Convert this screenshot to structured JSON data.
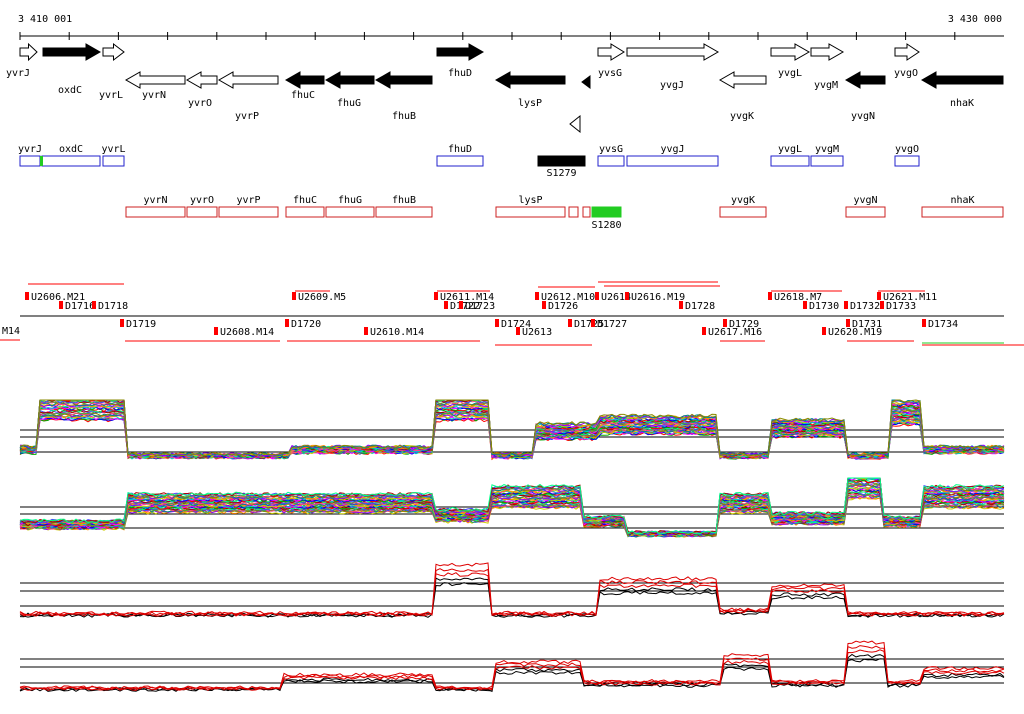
{
  "axis": {
    "start_label": "3 410 001",
    "end_label": "3 430 000",
    "start": 3410001,
    "end": 3430000
  },
  "colors": {
    "plus_outline": "#2222cc",
    "minus_outline": "#cc2222",
    "highlight": "#22cc22",
    "marker": "#ff0000",
    "trace_primary": "#000000",
    "trace_secondary": "#dd0000"
  },
  "genes": [
    {
      "name": "yvrJ",
      "strand": "+",
      "filled": false
    },
    {
      "name": "oxdC",
      "strand": "+",
      "filled": true
    },
    {
      "name": "yvrL",
      "strand": "+",
      "filled": false
    },
    {
      "name": "yvrN",
      "strand": "-",
      "filled": false
    },
    {
      "name": "yvrO",
      "strand": "-",
      "filled": false
    },
    {
      "name": "yvrP",
      "strand": "-",
      "filled": false
    },
    {
      "name": "fhuC",
      "strand": "-",
      "filled": true
    },
    {
      "name": "fhuG",
      "strand": "-",
      "filled": true
    },
    {
      "name": "fhuB",
      "strand": "-",
      "filled": true
    },
    {
      "name": "fhuD",
      "strand": "+",
      "filled": true
    },
    {
      "name": "lysP",
      "strand": "-",
      "filled": true
    },
    {
      "name": "yvsG",
      "strand": "+",
      "filled": false
    },
    {
      "name": "yvgJ",
      "strand": "+",
      "filled": false
    },
    {
      "name": "yvgK",
      "strand": "-",
      "filled": false
    },
    {
      "name": "yvgL",
      "strand": "+",
      "filled": false
    },
    {
      "name": "yvgM",
      "strand": "+",
      "filled": false
    },
    {
      "name": "yvgN",
      "strand": "-",
      "filled": true
    },
    {
      "name": "yvgO",
      "strand": "+",
      "filled": false
    },
    {
      "name": "nhaK",
      "strand": "-",
      "filled": true
    }
  ],
  "plus_track": [
    {
      "name": "yvrJ"
    },
    {
      "name": "oxdC"
    },
    {
      "name": "yvrL"
    },
    {
      "name": "fhuD"
    },
    {
      "name": "S1279"
    },
    {
      "name": "yvsG"
    },
    {
      "name": "yvgJ"
    },
    {
      "name": "yvgL"
    },
    {
      "name": "yvgM"
    },
    {
      "name": "yvgO"
    }
  ],
  "minus_track": [
    {
      "name": "yvrN"
    },
    {
      "name": "yvrO"
    },
    {
      "name": "yvrP"
    },
    {
      "name": "fhuC"
    },
    {
      "name": "fhuG"
    },
    {
      "name": "fhuB"
    },
    {
      "name": "lysP"
    },
    {
      "name": "S1280"
    },
    {
      "name": "yvgK"
    },
    {
      "name": "yvgN"
    },
    {
      "name": "nhaK"
    }
  ],
  "upper_features": [
    "U2606.M21",
    "D1716",
    "D1718",
    "U2609.M5",
    "U2611.M14",
    "D1722",
    "D1723",
    "U2612.M10",
    "D1726",
    "U2614",
    "U2616.M19",
    "D1728",
    "U2618.M7",
    "D1730",
    "D1732",
    "U2621.M11",
    "D1733"
  ],
  "lower_features": [
    "M14",
    "D1719",
    "U2608.M14",
    "D1720",
    "U2610.M14",
    "D1724",
    "U2613",
    "D1725",
    "D1727",
    "U2617.M16",
    "D1729",
    "D1731",
    "U2620.M19",
    "D1734"
  ]
}
